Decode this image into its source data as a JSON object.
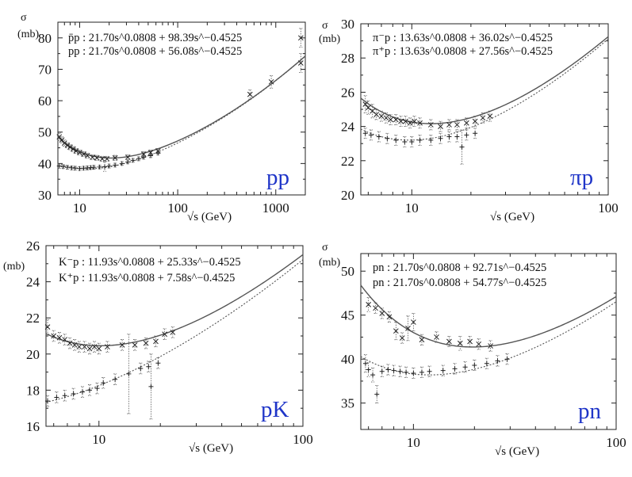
{
  "chart_data": [
    {
      "id": "pp",
      "type": "scatter",
      "panel_tag": "pp",
      "ylabel_symbol": "σ",
      "ylabel_unit": "(mb)",
      "xlabel": "√s (GeV)",
      "xscale": "log",
      "xlim": [
        6,
        2000
      ],
      "ylim": [
        30,
        85
      ],
      "xticks": [
        10,
        100,
        1000
      ],
      "xtick_labels": [
        "10",
        "100",
        "1000"
      ],
      "yticks": [
        30,
        40,
        50,
        60,
        70,
        80
      ],
      "ytick_labels": [
        "30",
        "40",
        "50",
        "60",
        "70",
        "80"
      ],
      "formulas": [
        {
          "label": "p̄p",
          "text": "p̄p : 21.70s^0.0808 + 98.39s^−0.4525"
        },
        {
          "label": "pp",
          "text": "pp : 21.70s^0.0808 + 56.08s^−0.4525"
        }
      ],
      "fits": [
        {
          "name": "p̄p",
          "A": 21.7,
          "B": 98.39,
          "style": "solid"
        },
        {
          "name": "pp",
          "A": 21.7,
          "B": 56.08,
          "style": "dotted"
        }
      ],
      "series": [
        {
          "name": "p̄p data",
          "marker": "x",
          "x": [
            6.2,
            6.6,
            7,
            7.5,
            8,
            8.6,
            9.2,
            10,
            11,
            12,
            13.5,
            15,
            17,
            19,
            23,
            31,
            45,
            53,
            63,
            546,
            900,
            1800,
            1800
          ],
          "y": [
            48.5,
            47.5,
            46.5,
            45.8,
            45.2,
            44.6,
            44,
            43.5,
            43,
            42.5,
            42,
            41.8,
            41.5,
            41.5,
            41.8,
            42,
            43,
            43.5,
            44,
            62,
            66,
            72,
            80
          ],
          "err": [
            1.2,
            1,
            1,
            0.8,
            0.8,
            0.8,
            0.8,
            0.8,
            0.8,
            0.8,
            0.8,
            0.8,
            0.8,
            0.8,
            0.8,
            0.8,
            0.8,
            0.8,
            0.8,
            1.5,
            2,
            3,
            3
          ]
        },
        {
          "name": "pp data",
          "marker": "+",
          "x": [
            6.2,
            6.8,
            7.5,
            8.3,
            9,
            10,
            11,
            12,
            13,
            14,
            16,
            18,
            20,
            23,
            27,
            31,
            35,
            40,
            45,
            53,
            63
          ],
          "y": [
            39.2,
            39,
            38.8,
            38.6,
            38.5,
            38.4,
            38.5,
            38.6,
            38.7,
            38.8,
            38.9,
            39,
            39.2,
            39.5,
            40,
            40.5,
            41,
            41.5,
            42,
            42.5,
            43.3
          ],
          "err": [
            0.8,
            0.6,
            0.6,
            0.6,
            0.6,
            0.6,
            0.6,
            0.6,
            0.6,
            0.6,
            0.6,
            1.5,
            0.6,
            0.6,
            0.6,
            0.6,
            0.6,
            0.6,
            0.6,
            0.6,
            0.6
          ]
        }
      ]
    },
    {
      "id": "pip",
      "type": "scatter",
      "panel_tag": "πp",
      "ylabel_symbol": "σ",
      "ylabel_unit": "(mb)",
      "xlabel": "√s (GeV)",
      "xscale": "log",
      "xlim": [
        5.5,
        100
      ],
      "ylim": [
        20,
        30
      ],
      "xticks": [
        10,
        100
      ],
      "xtick_labels": [
        "10",
        "100"
      ],
      "yticks": [
        20,
        22,
        24,
        26,
        28,
        30
      ],
      "ytick_labels": [
        "20",
        "22",
        "24",
        "26",
        "28",
        "30"
      ],
      "formulas": [
        {
          "label": "π−p",
          "text": "π⁻p : 13.63s^0.0808 + 36.02s^−0.4525"
        },
        {
          "label": "π+p",
          "text": "π⁺p : 13.63s^0.0808 + 27.56s^−0.4525"
        }
      ],
      "fits": [
        {
          "name": "π−p",
          "A": 13.63,
          "B": 36.02,
          "style": "solid"
        },
        {
          "name": "π+p",
          "A": 13.63,
          "B": 27.56,
          "style": "dotted"
        }
      ],
      "series": [
        {
          "name": "π−p data",
          "marker": "x",
          "x": [
            5.8,
            6,
            6.3,
            6.6,
            7,
            7.4,
            7.8,
            8.3,
            8.8,
            9.3,
            9.8,
            10.3,
            11,
            12.5,
            14,
            15.5,
            17,
            19,
            21,
            23,
            25
          ],
          "y": [
            25.3,
            25.1,
            24.9,
            24.7,
            24.6,
            24.5,
            24.4,
            24.4,
            24.3,
            24.3,
            24.2,
            24.3,
            24.2,
            24.1,
            24.0,
            24.1,
            24.1,
            24.2,
            24.3,
            24.5,
            24.6
          ],
          "err": [
            0.5,
            0.4,
            0.4,
            0.3,
            0.3,
            0.3,
            0.3,
            0.3,
            0.3,
            0.3,
            0.3,
            0.3,
            0.3,
            0.3,
            0.3,
            0.3,
            0.3,
            0.3,
            0.3,
            0.3,
            0.3
          ]
        },
        {
          "name": "π+p data",
          "marker": "+",
          "x": [
            5.8,
            6.2,
            6.8,
            7.5,
            8.3,
            9.2,
            10,
            11,
            12.5,
            14,
            15.5,
            17,
            18,
            19,
            21
          ],
          "y": [
            23.6,
            23.5,
            23.4,
            23.3,
            23.2,
            23.1,
            23.1,
            23.2,
            23.2,
            23.3,
            23.4,
            23.4,
            22.8,
            23.5,
            23.6
          ],
          "err": [
            0.3,
            0.3,
            0.3,
            0.3,
            0.3,
            0.3,
            0.3,
            0.3,
            0.3,
            0.3,
            0.3,
            0.3,
            1.0,
            0.3,
            0.3
          ]
        }
      ]
    },
    {
      "id": "pk",
      "type": "scatter",
      "panel_tag": "pK",
      "ylabel_symbol": "",
      "ylabel_unit": "(mb)",
      "xlabel": "√s (GeV)",
      "xscale": "log",
      "xlim": [
        5.5,
        100
      ],
      "ylim": [
        16,
        26
      ],
      "xticks": [
        10,
        100
      ],
      "xtick_labels": [
        "10",
        "100"
      ],
      "yticks": [
        16,
        18,
        20,
        22,
        24,
        26
      ],
      "ytick_labels": [
        "16",
        "18",
        "20",
        "22",
        "24",
        "26"
      ],
      "formulas": [
        {
          "label": "K−p",
          "text": "K⁻p : 11.93s^0.0808 + 25.33s^−0.4525"
        },
        {
          "label": "K+p",
          "text": "K⁺p : 11.93s^0.0808 + 7.58s^−0.4525"
        }
      ],
      "fits": [
        {
          "name": "K−p",
          "A": 11.93,
          "B": 25.33,
          "style": "solid"
        },
        {
          "name": "K+p",
          "A": 11.93,
          "B": 7.58,
          "style": "dotted"
        }
      ],
      "series": [
        {
          "name": "K−p data",
          "marker": "x",
          "x": [
            5.6,
            6,
            6.4,
            6.8,
            7.2,
            7.6,
            8,
            8.5,
            9,
            9.5,
            10,
            11,
            13,
            15,
            17,
            19,
            21,
            23
          ],
          "y": [
            21.5,
            21.0,
            20.9,
            20.8,
            20.6,
            20.5,
            20.4,
            20.4,
            20.3,
            20.4,
            20.3,
            20.4,
            20.5,
            20.5,
            20.6,
            20.7,
            21.1,
            21.2
          ],
          "err": [
            0.4,
            0.3,
            0.3,
            0.3,
            0.3,
            0.3,
            0.3,
            0.3,
            0.3,
            0.3,
            0.3,
            0.3,
            0.3,
            0.3,
            0.3,
            0.3,
            0.3,
            0.3
          ]
        },
        {
          "name": "K+p data",
          "marker": "+",
          "x": [
            5.6,
            6.2,
            6.8,
            7.5,
            8.3,
            9,
            9.8,
            10.5,
            12,
            14,
            16,
            17.5,
            18,
            19.5
          ],
          "y": [
            17.4,
            17.6,
            17.7,
            17.8,
            17.9,
            18.0,
            18.1,
            18.4,
            18.6,
            18.9,
            19.2,
            19.3,
            18.2,
            19.5
          ],
          "err": [
            0.3,
            0.3,
            0.3,
            0.3,
            0.3,
            0.3,
            0.3,
            0.3,
            0.3,
            2.2,
            0.3,
            0.3,
            1.8,
            0.3
          ]
        }
      ]
    },
    {
      "id": "pn",
      "type": "scatter",
      "panel_tag": "pn",
      "ylabel_symbol": "σ",
      "ylabel_unit": "(mb)",
      "xlabel": "√s (GeV)",
      "xscale": "log",
      "xlim": [
        5.5,
        100
      ],
      "ylim": [
        32,
        52
      ],
      "xticks": [
        10,
        100
      ],
      "xtick_labels": [
        "10",
        "100"
      ],
      "yticks": [
        35,
        40,
        45,
        50
      ],
      "ytick_labels": [
        "35",
        "40",
        "45",
        "50"
      ],
      "formulas": [
        {
          "label": "pn",
          "text": "pn : 21.70s^0.0808 + 92.71s^−0.4525"
        },
        {
          "label": "pn",
          "text": "pn : 21.70s^0.0808 + 54.77s^−0.4525"
        }
      ],
      "fits": [
        {
          "name": "p̄n",
          "A": 21.7,
          "B": 92.71,
          "style": "solid"
        },
        {
          "name": "pn",
          "A": 21.7,
          "B": 54.77,
          "style": "dotted"
        }
      ],
      "series": [
        {
          "name": "p̄n data",
          "marker": "x",
          "x": [
            6,
            6.5,
            7,
            7.6,
            8.2,
            8.8,
            9.4,
            10,
            11,
            13,
            15,
            17,
            19,
            21,
            24
          ],
          "y": [
            46.2,
            45.8,
            45.2,
            44.8,
            43.2,
            42.4,
            43.5,
            44.2,
            42.2,
            42.5,
            42.0,
            41.8,
            42.0,
            41.7,
            41.5
          ],
          "err": [
            0.8,
            0.6,
            0.6,
            0.6,
            1.0,
            0.6,
            1.4,
            1.0,
            0.6,
            0.6,
            0.6,
            0.8,
            0.6,
            0.6,
            0.6
          ]
        },
        {
          "name": "pn data",
          "marker": "+",
          "x": [
            5.8,
            6,
            6.3,
            6.6,
            7,
            7.5,
            8,
            8.6,
            9.2,
            10,
            11,
            12,
            14,
            16,
            18,
            20,
            23,
            26,
            29
          ],
          "y": [
            39.5,
            38.8,
            38.2,
            36.0,
            38.6,
            38.8,
            38.7,
            38.6,
            38.5,
            38.4,
            38.5,
            38.6,
            38.7,
            38.9,
            39.1,
            39.3,
            39.5,
            39.8,
            40.0
          ],
          "err": [
            1.0,
            0.8,
            0.8,
            1.0,
            0.6,
            0.6,
            0.6,
            0.6,
            0.6,
            0.6,
            0.6,
            0.6,
            0.6,
            0.6,
            0.6,
            0.6,
            0.6,
            0.6,
            0.6
          ]
        }
      ]
    }
  ]
}
